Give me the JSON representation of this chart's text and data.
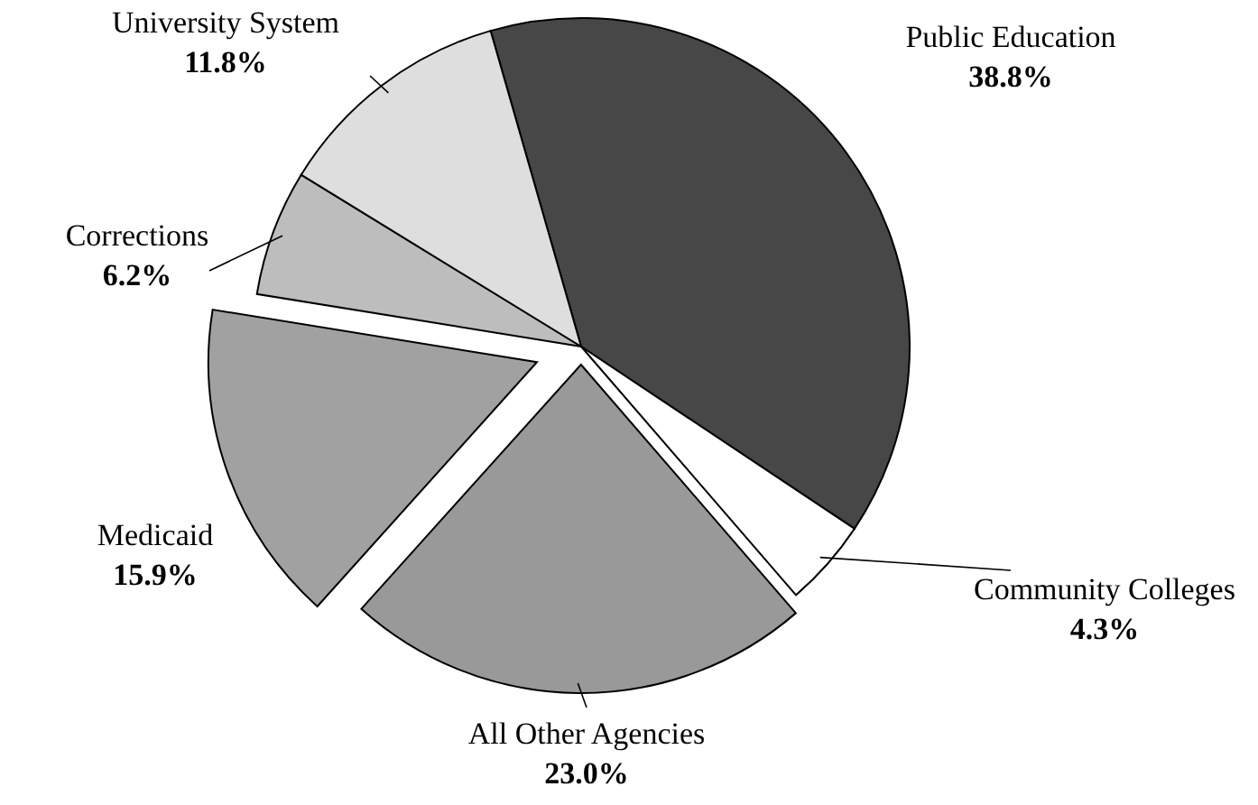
{
  "chart_data": {
    "type": "pie",
    "categories": [
      "Public Education",
      "Community Colleges",
      "All Other Agencies",
      "Medicaid",
      "Corrections",
      "University System"
    ],
    "values": [
      38.8,
      4.3,
      23.0,
      15.9,
      6.2,
      11.8
    ],
    "value_labels": [
      "38.8%",
      "4.3%",
      "23.0%",
      "15.9%",
      "6.2%",
      "11.8%"
    ],
    "colors": [
      "#474747",
      "#ffffff",
      "#999999",
      "#a1a1a1",
      "#bdbdbd",
      "#dedede"
    ]
  }
}
